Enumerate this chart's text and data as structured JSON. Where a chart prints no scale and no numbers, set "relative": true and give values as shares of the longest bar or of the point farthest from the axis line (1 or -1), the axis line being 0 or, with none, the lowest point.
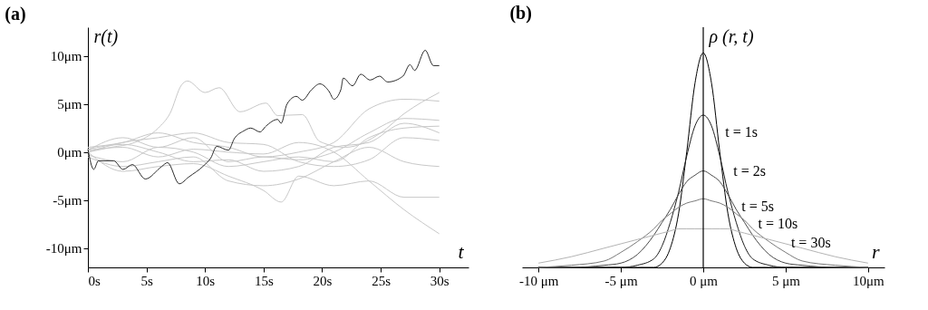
{
  "chart_data": [
    {
      "type": "line",
      "title": "(a)",
      "xlabel": "t",
      "ylabel": "r(t)",
      "xlim": [
        0,
        32.5
      ],
      "ylim": [
        -12,
        13
      ],
      "xticks": [
        {
          "value": 0,
          "label": "0s"
        },
        {
          "value": 5,
          "label": "5s"
        },
        {
          "value": 10,
          "label": "10s"
        },
        {
          "value": 15,
          "label": "15s"
        },
        {
          "value": 20,
          "label": "20s"
        },
        {
          "value": 25,
          "label": "25s"
        },
        {
          "value": 30,
          "label": "30s"
        }
      ],
      "yticks": [
        {
          "value": -10,
          "label": "-10μm"
        },
        {
          "value": -5,
          "label": "-5μm"
        },
        {
          "value": 0,
          "label": "0μm"
        },
        {
          "value": 5,
          "label": "5μm"
        },
        {
          "value": 10,
          "label": "10μm"
        }
      ],
      "grid": false,
      "series": [
        {
          "color": "#c8c8c8",
          "x": [
            0,
            2,
            4,
            6,
            7,
            8,
            8.5,
            10,
            11.2,
            13,
            15.2,
            16.2,
            18.3,
            19.8,
            22,
            25,
            27,
            30
          ],
          "values": [
            0,
            0.5,
            1,
            2.5,
            4,
            7,
            7.4,
            6.2,
            6.7,
            4.2,
            5.1,
            3.8,
            3.9,
            1.1,
            0.5,
            2,
            4,
            6.2
          ]
        },
        {
          "color": "#c8c8c8",
          "x": [
            0,
            3,
            6,
            9,
            12,
            15,
            18,
            21,
            24,
            27,
            30
          ],
          "values": [
            0.5,
            1,
            2,
            1,
            0.5,
            -0.5,
            0,
            1,
            4.5,
            5.5,
            5.3
          ]
        },
        {
          "color": "#c8c8c8",
          "x": [
            0,
            3,
            6,
            9,
            12,
            15,
            18,
            21,
            24,
            27,
            30
          ],
          "values": [
            0.2,
            1.5,
            0.5,
            1.5,
            -1,
            -0.5,
            -0.8,
            0,
            2,
            3.5,
            3.3
          ]
        },
        {
          "color": "#c8c8c8",
          "x": [
            0,
            3,
            6,
            9,
            12,
            15,
            18,
            21,
            24,
            27,
            30
          ],
          "values": [
            -0.3,
            -1,
            0.5,
            0,
            -1.5,
            -1,
            -0.5,
            -1,
            1.5,
            2.5,
            2.7
          ]
        },
        {
          "color": "#c8c8c8",
          "x": [
            0,
            3,
            6,
            9,
            12,
            15,
            18,
            21,
            24,
            27,
            30
          ],
          "values": [
            0.3,
            0.8,
            0,
            -1,
            -0.8,
            -2,
            -1.5,
            0.5,
            1,
            3,
            2
          ]
        },
        {
          "color": "#c8c8c8",
          "x": [
            0,
            3,
            6,
            9,
            12,
            15,
            18,
            21,
            24,
            27,
            30
          ],
          "values": [
            -0.5,
            -1.5,
            -1,
            -0.5,
            -3,
            -3.5,
            -2.8,
            -1,
            0.5,
            -1,
            -1.5
          ]
        },
        {
          "color": "#c8c8c8",
          "x": [
            0,
            3,
            6,
            9,
            12,
            15,
            16.5,
            18,
            21,
            24,
            27,
            30
          ],
          "values": [
            0,
            -2,
            -1.5,
            -1.2,
            -2.5,
            -4,
            -5.2,
            -2.5,
            -3.5,
            -3,
            -4.7,
            -4.7
          ]
        },
        {
          "color": "#c8c8c8",
          "x": [
            0,
            3,
            6,
            9,
            12,
            15,
            18,
            21,
            24,
            27,
            30
          ],
          "values": [
            0.2,
            0.5,
            -0.5,
            0.3,
            0,
            -0.2,
            1,
            0,
            -3,
            -6,
            -8.5
          ]
        },
        {
          "color": "#c8c8c8",
          "x": [
            0,
            3,
            6,
            9,
            12,
            15,
            18,
            21,
            24,
            27,
            30
          ],
          "values": [
            0,
            1,
            1.5,
            2,
            1,
            0.8,
            -1,
            -1.5,
            -0.8,
            1.5,
            1.2
          ]
        },
        {
          "color": "#2a2a2a",
          "x": [
            0,
            0.5,
            0.9,
            2.2,
            3,
            3.8,
            4.9,
            6.3,
            6.8,
            7.8,
            8.6,
            9.9,
            10.5,
            11,
            12,
            12.5,
            13.3,
            13.9,
            14.7,
            15.2,
            16.2,
            16.5,
            17,
            17.8,
            18.3,
            19.1,
            19.8,
            20.6,
            21,
            21.6,
            21.8,
            22.6,
            23.3,
            24.1,
            24.9,
            25.6,
            26.9,
            27.5,
            27.9,
            28.8,
            29.5,
            30
          ],
          "values": [
            0.3,
            -1.8,
            -0.9,
            -0.9,
            -1.8,
            -1.3,
            -2.8,
            -1.5,
            -1.1,
            -3.3,
            -2.6,
            -1.4,
            -0.6,
            0.6,
            0.2,
            1.4,
            2.2,
            2.5,
            2.1,
            2.7,
            3.4,
            3,
            5,
            5.8,
            5.4,
            6.5,
            7.1,
            6.3,
            5.5,
            6.5,
            7.7,
            6.9,
            8.1,
            7.5,
            7.9,
            7.3,
            7.9,
            9.1,
            8.5,
            10.6,
            9,
            9
          ]
        }
      ]
    },
    {
      "type": "line",
      "title": "(b)",
      "xlabel": "r",
      "ylabel": "ρ  (r, t)",
      "relative": true,
      "xlim": [
        -11,
        11
      ],
      "xticks": [
        {
          "value": -10,
          "label": "-10 μm"
        },
        {
          "value": -5,
          "label": "-5 μm"
        },
        {
          "value": 0,
          "label": "0 μm"
        },
        {
          "value": 5,
          "label": "5 μm"
        },
        {
          "value": 10,
          "label": "10μm"
        }
      ],
      "grid": false,
      "ref_lines": [
        {
          "axis": "x",
          "value": 0,
          "color": "#000000"
        }
      ],
      "x": [
        -10,
        -8,
        -6,
        -5,
        -4,
        -3,
        -2.5,
        -2,
        -1.5,
        -1,
        -0.5,
        0,
        0.5,
        1,
        1.5,
        2,
        2.5,
        3,
        4,
        5,
        6,
        8,
        10
      ],
      "series": [
        {
          "name": "t = 1s",
          "color": "#000000",
          "values": [
            0,
            0,
            0,
            0,
            0,
            0,
            0.02,
            0.09,
            0.25,
            0.54,
            0.86,
            1,
            0.86,
            0.54,
            0.25,
            0.09,
            0.02,
            0,
            0,
            0,
            0,
            0,
            0
          ]
        },
        {
          "name": "t = 2s",
          "color": "#1e1e1e",
          "values": [
            0,
            0,
            0,
            0,
            0.01,
            0.04,
            0.1,
            0.21,
            0.35,
            0.52,
            0.66,
            0.71,
            0.66,
            0.52,
            0.35,
            0.21,
            0.1,
            0.04,
            0.01,
            0,
            0,
            0,
            0
          ]
        },
        {
          "name": "t = 5s",
          "color": "#4a4a4a",
          "values": [
            0,
            0,
            0.01,
            0.02,
            0.06,
            0.15,
            0.21,
            0.27,
            0.34,
            0.4,
            0.43,
            0.45,
            0.43,
            0.4,
            0.34,
            0.27,
            0.21,
            0.15,
            0.06,
            0.02,
            0.01,
            0,
            0
          ]
        },
        {
          "name": "t = 10s",
          "color": "#7a7a7a",
          "values": [
            0,
            0.01,
            0.03,
            0.07,
            0.12,
            0.18,
            0.22,
            0.25,
            0.28,
            0.3,
            0.31,
            0.32,
            0.31,
            0.3,
            0.28,
            0.25,
            0.22,
            0.18,
            0.12,
            0.07,
            0.03,
            0.01,
            0
          ]
        },
        {
          "name": "t = 30s",
          "color": "#b4b4b4",
          "values": [
            0.02,
            0.05,
            0.09,
            0.11,
            0.13,
            0.15,
            0.16,
            0.17,
            0.18,
            0.18,
            0.18,
            0.18,
            0.18,
            0.18,
            0.18,
            0.17,
            0.16,
            0.15,
            0.13,
            0.11,
            0.09,
            0.05,
            0.02
          ]
        }
      ]
    }
  ]
}
